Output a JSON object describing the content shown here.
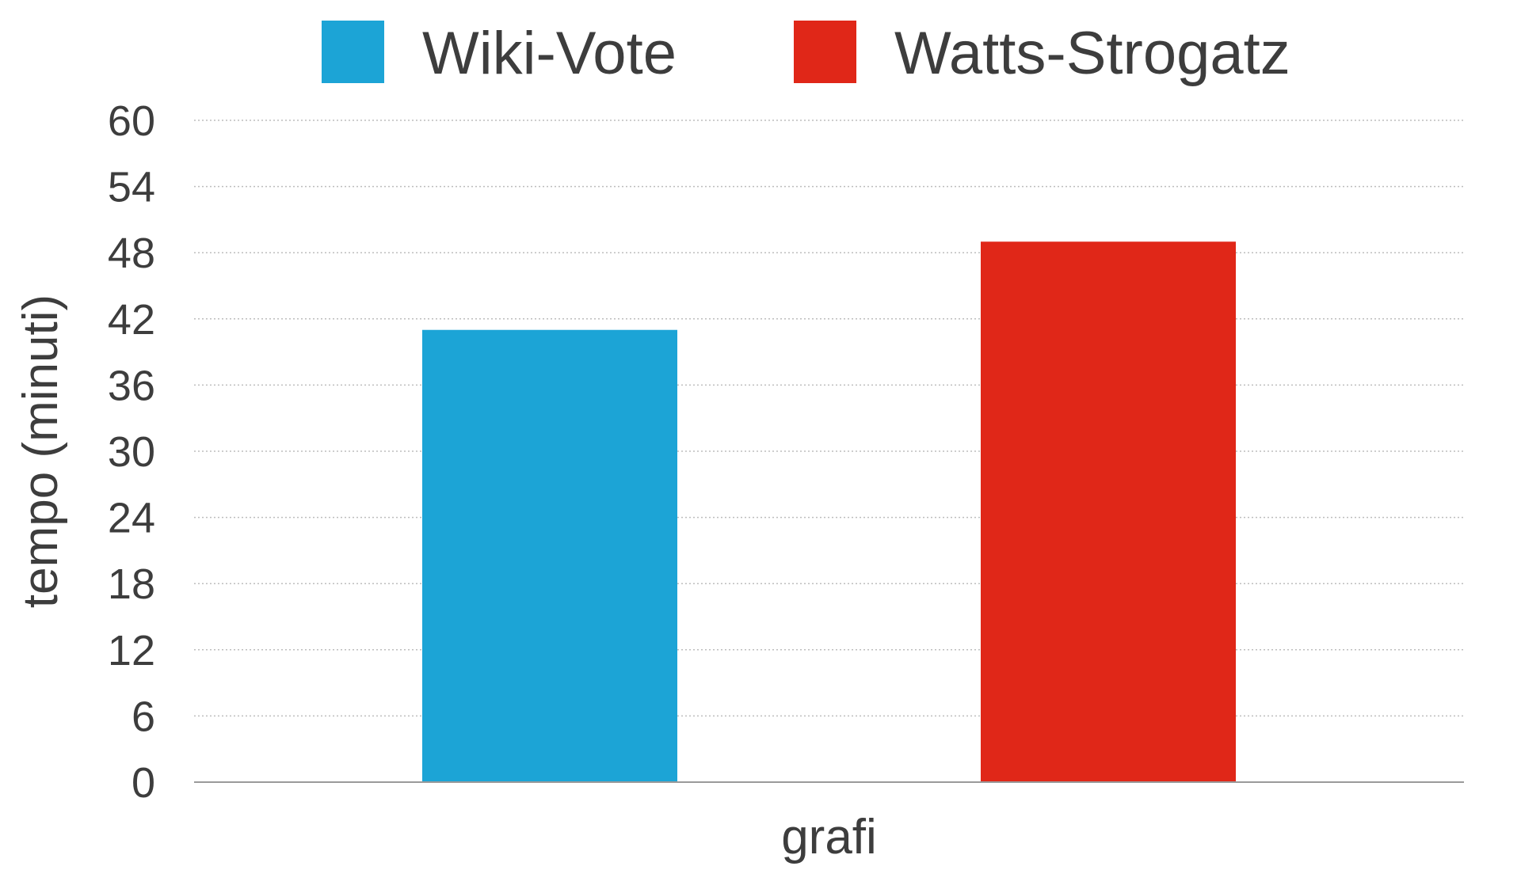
{
  "chart_data": {
    "type": "bar",
    "categories": [
      "grafi"
    ],
    "series": [
      {
        "name": "Wiki-Vote",
        "color": "#1ca4d6",
        "values": [
          41
        ]
      },
      {
        "name": "Watts-Strogatz",
        "color": "#e02718",
        "values": [
          49
        ]
      }
    ],
    "xlabel": "grafi",
    "ylabel": "tempo (minuti)",
    "ylim": [
      0,
      60
    ],
    "yticks": [
      "0",
      "6",
      "12",
      "18",
      "24",
      "30",
      "36",
      "42",
      "48",
      "54",
      "60"
    ],
    "grid": true,
    "legend": "top-center"
  }
}
